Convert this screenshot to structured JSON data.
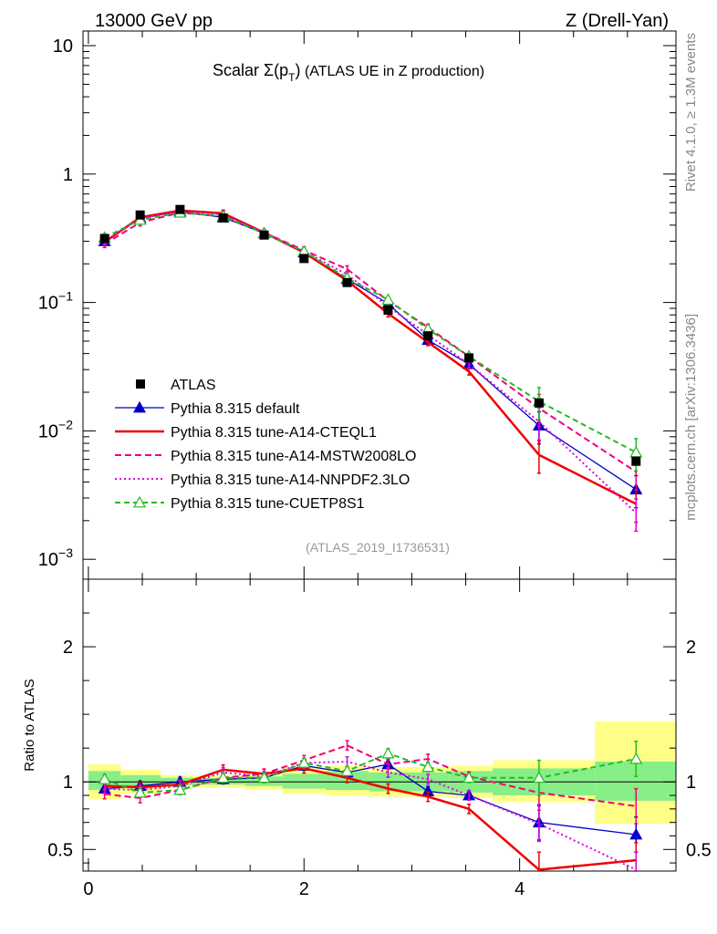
{
  "header": {
    "left": "13000 GeV pp",
    "right": "Z (Drell-Yan)"
  },
  "side_texts": {
    "rivet": "Rivet 4.1.0, ≥ 1.3M events",
    "mcplots": "mcplots.cern.ch [arXiv:1306.3436]"
  },
  "colors": {
    "data": "#000000",
    "default": "#0000cc",
    "cteql1": "#ee0000",
    "mstw": "#ee0077",
    "nnpdf": "#dd00dd",
    "cuetp8s1": "#22bb22",
    "band_inner": "#88ee88",
    "band_outer": "#ffff88"
  },
  "chart_data": [
    {
      "type": "line",
      "panel": "main",
      "title_main": "Scalar Σ(p",
      "title_sub": "T",
      "title_close": ")",
      "title_rest": " (ATLAS UE in Z production)",
      "analysis_label": "(ATLAS_2019_I1736531)",
      "yscale": "log",
      "xlim": [
        -0.05,
        5.45
      ],
      "ylim": [
        0.0007,
        13
      ],
      "y_tick_labels": [
        {
          "value": 10,
          "mant": "10",
          "exp": ""
        },
        {
          "value": 1,
          "mant": "1",
          "exp": ""
        },
        {
          "value": 0.1,
          "mant": "10",
          "exp": "−1"
        },
        {
          "value": 0.01,
          "mant": "10",
          "exp": "−2"
        },
        {
          "value": 0.001,
          "mant": "10",
          "exp": "−3"
        }
      ],
      "legend_position": "bottom-left",
      "x": [
        0.15,
        0.48,
        0.85,
        1.25,
        1.63,
        2.0,
        2.4,
        2.78,
        3.15,
        3.53,
        4.18,
        5.08
      ],
      "series": [
        {
          "name": "ATLAS",
          "key": "data",
          "style": "data",
          "values": [
            0.315,
            0.48,
            0.53,
            0.455,
            0.335,
            0.22,
            0.143,
            0.087,
            0.055,
            0.037,
            0.0165,
            0.0058
          ]
        },
        {
          "name": "Pythia 8.315 default",
          "key": "default",
          "style": "solid",
          "marker": "triangle-filled",
          "values": [
            0.3,
            0.455,
            0.51,
            0.46,
            0.345,
            0.245,
            0.152,
            0.098,
            0.051,
            0.033,
            0.011,
            0.0035
          ]
        },
        {
          "name": "Pythia 8.315 tune-A14-CTEQL1",
          "key": "cteql1",
          "style": "thick",
          "values": [
            0.295,
            0.46,
            0.52,
            0.495,
            0.35,
            0.245,
            0.148,
            0.082,
            0.049,
            0.029,
            0.0065,
            0.0027
          ]
        },
        {
          "name": "Pythia 8.315 tune-A14-MSTW2008LO",
          "key": "mstw",
          "style": "dashed",
          "values": [
            0.285,
            0.42,
            0.5,
            0.47,
            0.35,
            0.255,
            0.182,
            0.103,
            0.064,
            0.038,
            0.015,
            0.0048
          ]
        },
        {
          "name": "Pythia 8.315 tune-A14-NNPDF2.3LO",
          "key": "nnpdf",
          "style": "dotted",
          "values": [
            0.3,
            0.45,
            0.515,
            0.485,
            0.35,
            0.25,
            0.165,
            0.093,
            0.056,
            0.033,
            0.0118,
            0.0023
          ]
        },
        {
          "name": "Pythia 8.315 tune-CUETP8S1",
          "key": "cuetp8s1",
          "style": "green-dashed",
          "marker": "triangle-open",
          "values": [
            0.32,
            0.44,
            0.5,
            0.47,
            0.345,
            0.25,
            0.155,
            0.105,
            0.062,
            0.038,
            0.017,
            0.0068
          ]
        }
      ]
    },
    {
      "type": "line",
      "panel": "ratio",
      "ylabel": "Ratio to ATLAS",
      "xlim": [
        -0.05,
        5.45
      ],
      "ylim": [
        0.34,
        2.5
      ],
      "x_tick_labels": [
        "0",
        "2",
        "4"
      ],
      "y_tick_labels": [
        "2",
        "1",
        "0.5"
      ],
      "x": [
        0.15,
        0.48,
        0.85,
        1.25,
        1.63,
        2.0,
        2.4,
        2.78,
        3.15,
        3.53,
        4.18,
        5.08
      ],
      "bands": {
        "edges": [
          0.0,
          0.3,
          0.67,
          1.05,
          1.45,
          1.8,
          2.2,
          2.6,
          3.35,
          3.75,
          4.7,
          5.45
        ],
        "inner": [
          [
            0.94,
            1.08
          ],
          [
            0.96,
            1.05
          ],
          [
            0.975,
            1.03
          ],
          [
            0.98,
            1.03
          ],
          [
            0.97,
            1.04
          ],
          [
            0.95,
            1.06
          ],
          [
            0.94,
            1.08
          ],
          [
            0.93,
            1.07
          ],
          [
            0.92,
            1.08
          ],
          [
            0.9,
            1.1
          ],
          [
            0.86,
            1.15
          ]
        ],
        "outer": [
          [
            0.87,
            1.13
          ],
          [
            0.91,
            1.09
          ],
          [
            0.955,
            1.05
          ],
          [
            0.96,
            1.05
          ],
          [
            0.94,
            1.07
          ],
          [
            0.91,
            1.1
          ],
          [
            0.9,
            1.12
          ],
          [
            0.89,
            1.11
          ],
          [
            0.88,
            1.12
          ],
          [
            0.85,
            1.16
          ],
          [
            0.69,
            1.45
          ]
        ]
      },
      "series": [
        {
          "key": "default",
          "values": [
            0.95,
            0.97,
            1.0,
            1.02,
            1.03,
            1.12,
            1.07,
            1.13,
            0.93,
            0.9,
            0.7,
            0.61
          ]
        },
        {
          "key": "cteql1",
          "values": [
            0.97,
            0.96,
            0.98,
            1.09,
            1.06,
            1.1,
            1.03,
            0.95,
            0.89,
            0.8,
            0.35,
            0.42
          ]
        },
        {
          "key": "mstw",
          "values": [
            0.91,
            0.88,
            0.94,
            1.03,
            1.06,
            1.16,
            1.27,
            1.13,
            1.17,
            1.04,
            0.92,
            0.82
          ]
        },
        {
          "key": "nnpdf",
          "values": [
            0.95,
            0.94,
            0.97,
            1.07,
            1.04,
            1.14,
            1.15,
            1.07,
            1.02,
            0.9,
            0.69,
            0.35
          ]
        },
        {
          "key": "cuetp8s1",
          "values": [
            1.02,
            0.92,
            0.94,
            1.03,
            1.03,
            1.14,
            1.08,
            1.21,
            1.11,
            1.03,
            1.03,
            1.17
          ]
        }
      ]
    }
  ]
}
